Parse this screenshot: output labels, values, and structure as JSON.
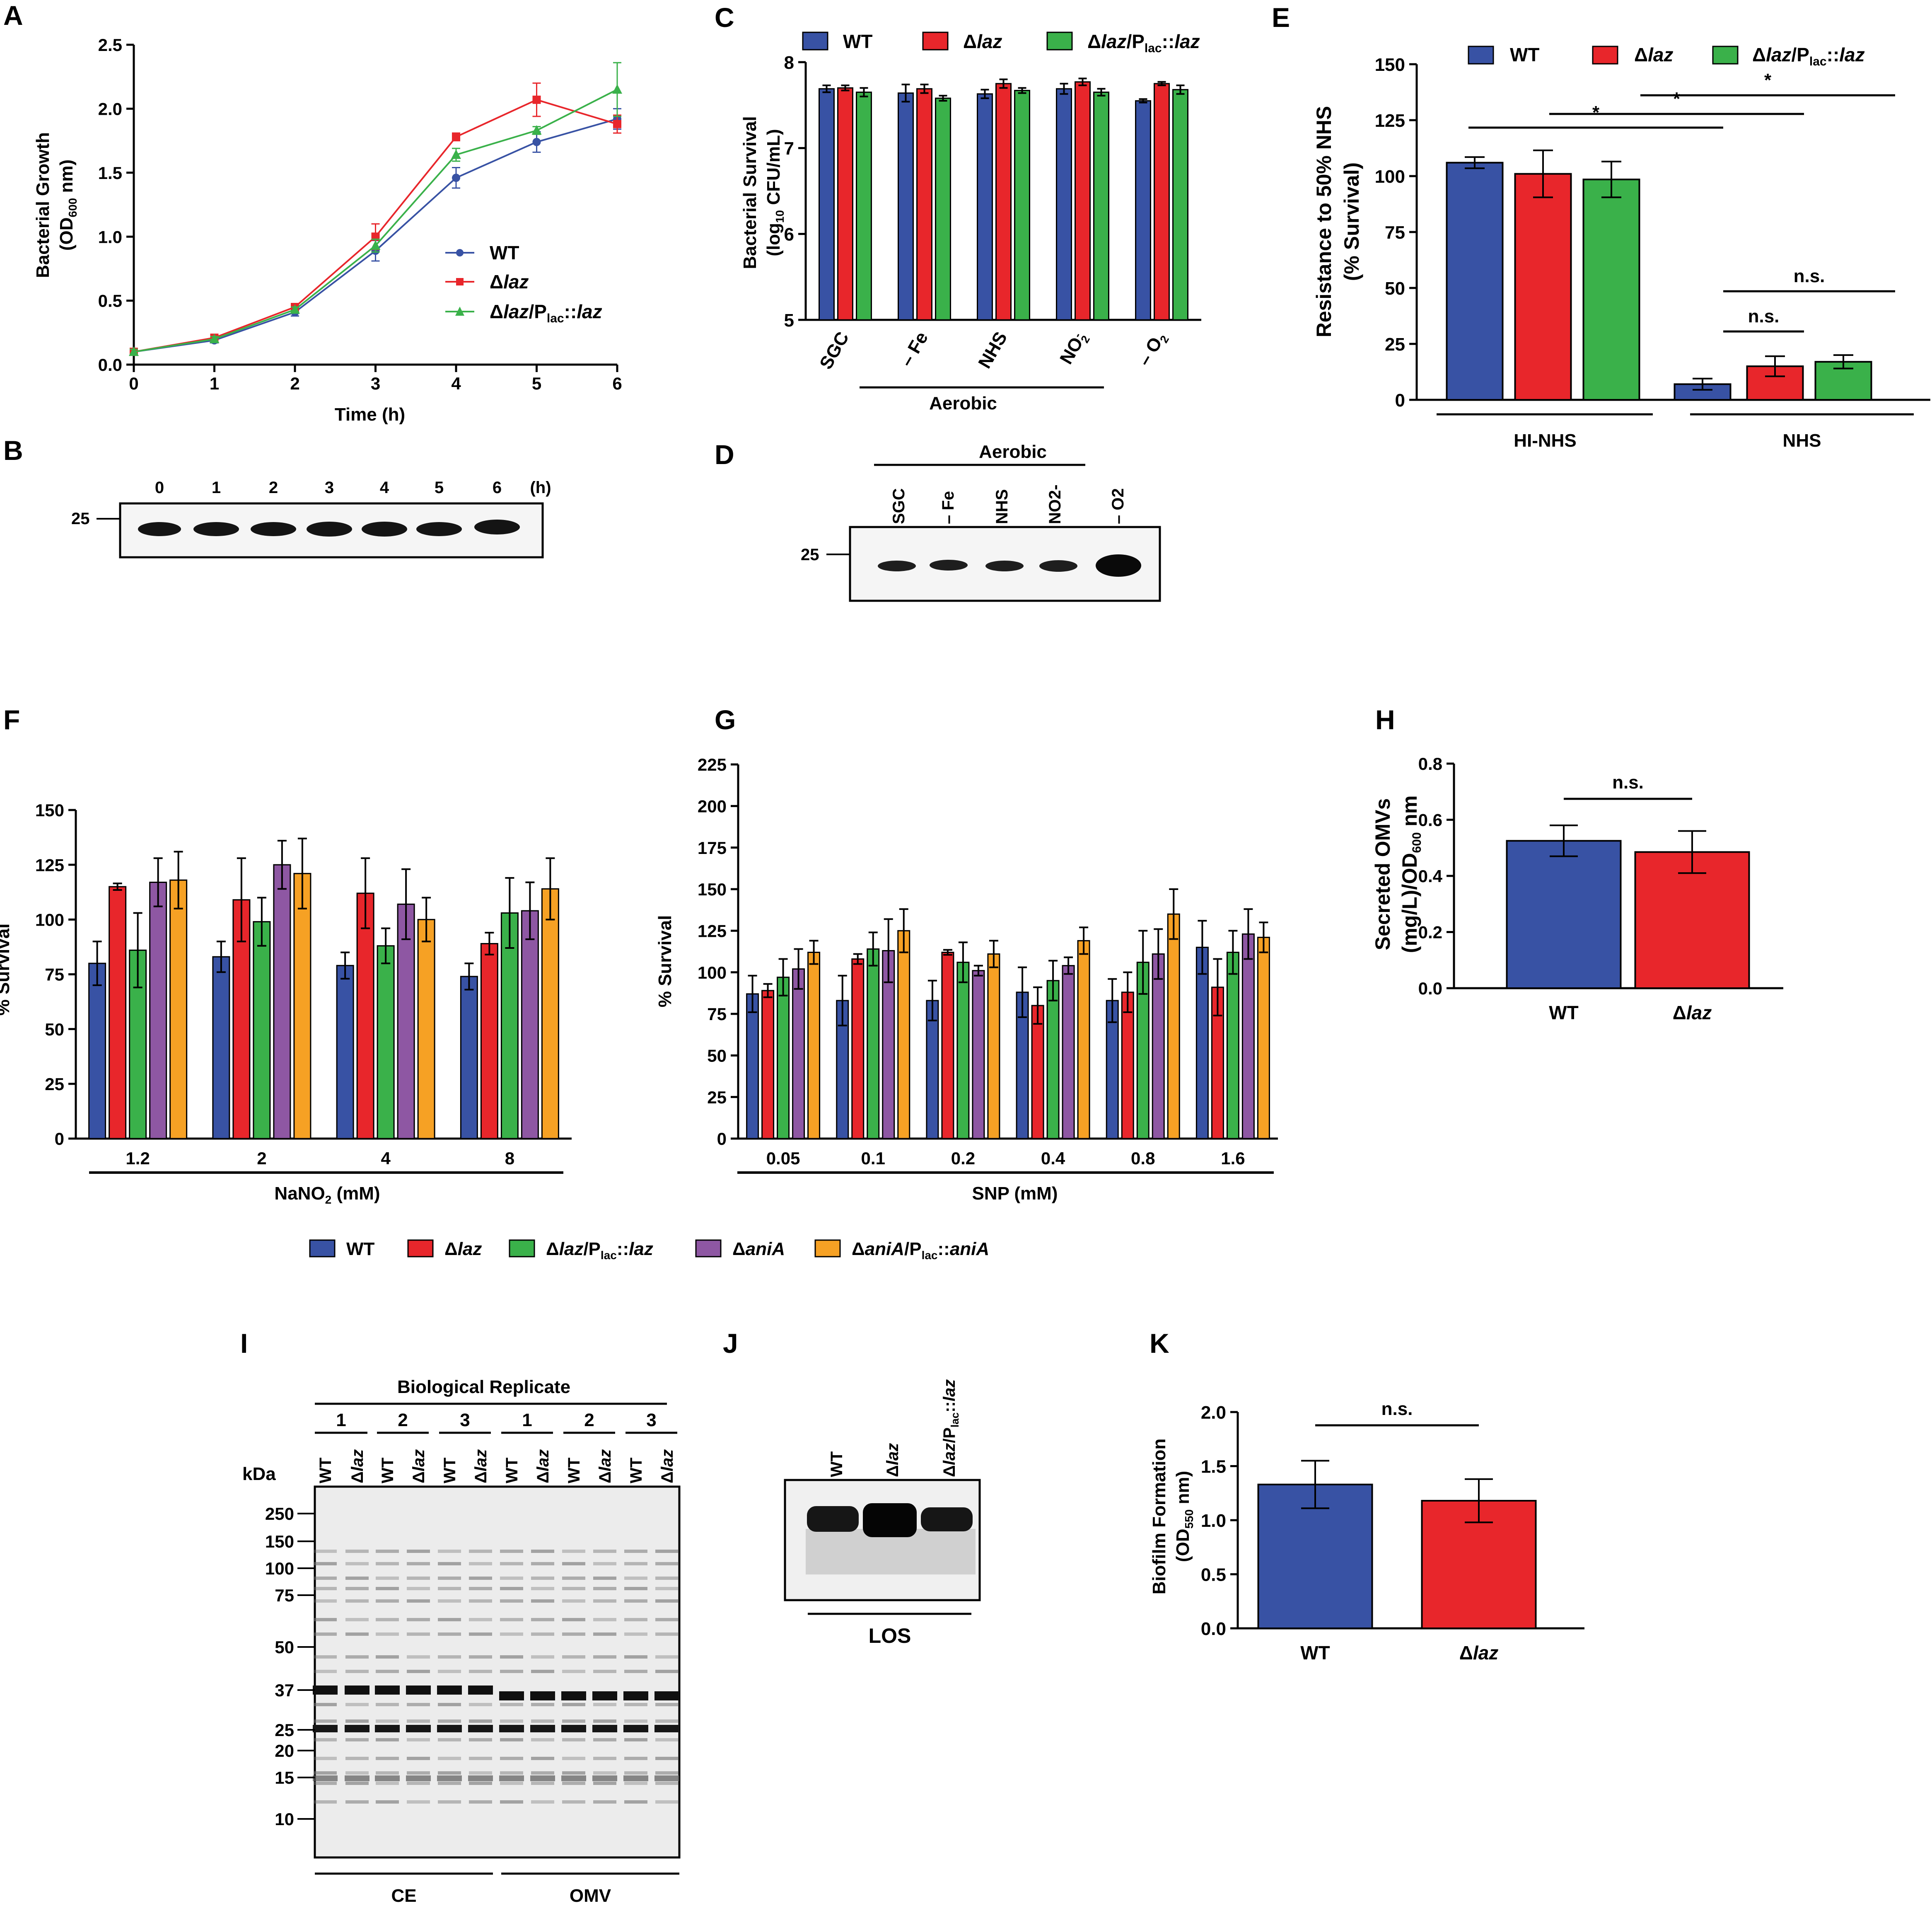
{
  "colors": {
    "wt": "#3852A4",
    "laz": "#E8262B",
    "comp": "#3AB14A",
    "ania": "#8E57A3",
    "ania_comp": "#F6A124",
    "black": "#000000",
    "gel_bg": "#ececec",
    "band": "#141414"
  },
  "panel_labels": [
    "A",
    "B",
    "C",
    "D",
    "E",
    "F",
    "G",
    "H",
    "I",
    "J",
    "K"
  ],
  "legend_common": {
    "wt": "WT",
    "delta": "Δ",
    "laz": "laz",
    "slash_p": "/P",
    "lac": "lac",
    "dcolon": "::",
    "ania": "aniA"
  },
  "chart_data": [
    {
      "id": "A",
      "type": "line",
      "title": "",
      "xlabel": "Time (h)",
      "ylabel_line1": "Bacterial Growth",
      "ylabel_line2_pre": "(OD",
      "ylabel_line2_sub": "600",
      "ylabel_line2_post": " nm)",
      "x": [
        0,
        1,
        2,
        3,
        4,
        5,
        6
      ],
      "xlim": [
        0,
        6
      ],
      "ylim": [
        0,
        2.5
      ],
      "yticks": [
        "0.0",
        "0.5",
        "1.0",
        "1.5",
        "2.0",
        "2.5"
      ],
      "xticks": [
        "0",
        "1",
        "2",
        "3",
        "4",
        "5",
        "6"
      ],
      "series": [
        {
          "name": "WT",
          "values": [
            0.1,
            0.19,
            0.41,
            0.89,
            1.46,
            1.74,
            1.92
          ],
          "errors": [
            0.02,
            0.02,
            0.03,
            0.08,
            0.08,
            0.08,
            0.08
          ]
        },
        {
          "name": "Δlaz",
          "values": [
            0.1,
            0.21,
            0.45,
            1.0,
            1.78,
            2.07,
            1.88
          ],
          "errors": [
            0.02,
            0.02,
            0.02,
            0.1,
            0.03,
            0.13,
            0.07
          ]
        },
        {
          "name": "Δlaz/Plac::laz",
          "values": [
            0.1,
            0.2,
            0.43,
            0.93,
            1.64,
            1.83,
            2.15
          ],
          "errors": [
            0.02,
            0.02,
            0.02,
            0.05,
            0.05,
            0.03,
            0.21
          ]
        }
      ]
    },
    {
      "id": "C",
      "type": "bar",
      "ylabel_line1": "Bacterial Survival",
      "ylabel_line2_pre": "(log",
      "ylabel_line2_sub": "10",
      "ylabel_line2_post": " CFU/mL)",
      "ylim": [
        5,
        8
      ],
      "yticks": [
        "5",
        "6",
        "7",
        "8"
      ],
      "categories": [
        "SGC",
        "– Fe",
        "NHS",
        "NO2-",
        "– O2"
      ],
      "group_label": "Aerobic",
      "series": [
        {
          "name": "WT",
          "values": [
            7.69,
            7.64,
            7.63,
            7.69,
            7.55
          ],
          "errors": [
            0.04,
            0.1,
            0.05,
            0.06,
            0.02
          ]
        },
        {
          "name": "Δlaz",
          "values": [
            7.7,
            7.69,
            7.75,
            7.77,
            7.75
          ],
          "errors": [
            0.03,
            0.05,
            0.05,
            0.04,
            0.02
          ]
        },
        {
          "name": "Δlaz/Plac::laz",
          "values": [
            7.65,
            7.58,
            7.67,
            7.65,
            7.68
          ],
          "errors": [
            0.05,
            0.03,
            0.03,
            0.04,
            0.05
          ]
        }
      ]
    },
    {
      "id": "E",
      "type": "bar",
      "ylabel_line1": "Resistance to 50% NHS",
      "ylabel_line2": "(% Survival)",
      "ylim": [
        0,
        150
      ],
      "yticks": [
        "0",
        "25",
        "50",
        "75",
        "100",
        "125",
        "150"
      ],
      "groups": [
        "HI-NHS",
        "NHS"
      ],
      "series": [
        {
          "name": "WT",
          "values": [
            106,
            7
          ],
          "errors": [
            2.5,
            2.5
          ]
        },
        {
          "name": "Δlaz",
          "values": [
            101,
            15
          ],
          "errors": [
            10.5,
            4.5
          ]
        },
        {
          "name": "Δlaz/Plac::laz",
          "values": [
            98.5,
            17
          ],
          "errors": [
            8,
            3
          ]
        }
      ],
      "annotations": [
        "*",
        "*",
        "*",
        "n.s.",
        "n.s."
      ]
    },
    {
      "id": "F",
      "type": "bar",
      "ylabel": "% Survival",
      "ylim": [
        0,
        150
      ],
      "yticks": [
        "0",
        "25",
        "50",
        "75",
        "100",
        "125",
        "150"
      ],
      "categories": [
        "1.2",
        "2",
        "4",
        "8"
      ],
      "xlabel_pre": "NaNO",
      "xlabel_sub": "2",
      "xlabel_post": " (mM)",
      "series": [
        {
          "name": "WT",
          "values": [
            80,
            83,
            79,
            74
          ],
          "errors": [
            10,
            7,
            6,
            6
          ]
        },
        {
          "name": "Δlaz",
          "values": [
            115,
            109,
            112,
            89
          ],
          "errors": [
            1.5,
            19,
            16,
            5
          ]
        },
        {
          "name": "Δlaz/Plac::laz",
          "values": [
            86,
            99,
            88,
            103
          ],
          "errors": [
            17,
            11,
            8,
            16
          ]
        },
        {
          "name": "ΔaniA",
          "values": [
            117,
            125,
            107,
            104
          ],
          "errors": [
            11,
            11,
            16,
            13
          ]
        },
        {
          "name": "ΔaniA/Plac::aniA",
          "values": [
            118,
            121,
            100,
            114
          ],
          "errors": [
            13,
            16,
            10,
            14
          ]
        }
      ]
    },
    {
      "id": "G",
      "type": "bar",
      "ylabel": "% Survival",
      "ylim": [
        0,
        225
      ],
      "yticks": [
        "0",
        "25",
        "50",
        "75",
        "100",
        "125",
        "150",
        "175",
        "200",
        "225"
      ],
      "categories": [
        "0.05",
        "0.1",
        "0.2",
        "0.4",
        "0.8",
        "1.6"
      ],
      "xlabel": "SNP (mM)",
      "series": [
        {
          "name": "WT",
          "values": [
            87,
            83,
            83,
            88,
            83,
            115
          ],
          "errors": [
            11,
            15,
            12,
            15,
            13,
            16
          ]
        },
        {
          "name": "Δlaz",
          "values": [
            89,
            108,
            112,
            80,
            88,
            91
          ],
          "errors": [
            4,
            3,
            1.5,
            11,
            12,
            17
          ]
        },
        {
          "name": "Δlaz/Plac::laz",
          "values": [
            97,
            114,
            106,
            95,
            106,
            112
          ],
          "errors": [
            11,
            10,
            12,
            12,
            19,
            13
          ]
        },
        {
          "name": "ΔaniA",
          "values": [
            102,
            113,
            101,
            104,
            111,
            123
          ],
          "errors": [
            12,
            19,
            3,
            5,
            15,
            15
          ]
        },
        {
          "name": "ΔaniA/Plac::aniA",
          "values": [
            112,
            125,
            111,
            119,
            135,
            121
          ],
          "errors": [
            7,
            13,
            8,
            8,
            15,
            9
          ]
        }
      ]
    },
    {
      "id": "H",
      "type": "bar",
      "ylabel_line1": "Secreted OMVs",
      "ylabel_line2_pre": "(mg/L)/OD",
      "ylabel_line2_sub": "600",
      "ylabel_line2_post": " nm",
      "ylim": [
        0,
        0.8
      ],
      "yticks": [
        "0.0",
        "0.2",
        "0.4",
        "0.6",
        "0.8"
      ],
      "categories": [
        "WT",
        "Δlaz"
      ],
      "values": [
        0.525,
        0.485
      ],
      "errors": [
        0.055,
        0.075
      ],
      "annotation": "n.s."
    },
    {
      "id": "K",
      "type": "bar",
      "ylabel_line1": "Biofilm Formation",
      "ylabel_line2_pre": "(OD",
      "ylabel_line2_sub": "550",
      "ylabel_line2_post": " nm)",
      "ylim": [
        0,
        2.0
      ],
      "yticks": [
        "0.0",
        "0.5",
        "1.0",
        "1.5",
        "2.0"
      ],
      "categories": [
        "WT",
        "Δlaz"
      ],
      "values": [
        1.33,
        1.18
      ],
      "errors": [
        0.22,
        0.2
      ],
      "annotation": "n.s."
    }
  ],
  "blot_B": {
    "lanes": [
      "0",
      "1",
      "2",
      "3",
      "4",
      "5",
      "6"
    ],
    "unit": "(h)",
    "marker": "25"
  },
  "blot_D": {
    "header": "Aerobic",
    "lanes": [
      "SGC",
      "– Fe",
      "NHS",
      "NO2-",
      "– O2"
    ],
    "marker": "25"
  },
  "gel_I": {
    "header": "Biological Replicate",
    "replicates": [
      "1",
      "2",
      "3",
      "1",
      "2",
      "3"
    ],
    "lane_labels": [
      "WT",
      "Δlaz",
      "WT",
      "Δlaz",
      "WT",
      "Δlaz",
      "WT",
      "Δlaz",
      "WT",
      "Δlaz",
      "WT",
      "Δlaz"
    ],
    "unit": "kDa",
    "markers": [
      "250",
      "150",
      "100",
      "75",
      "50",
      "37",
      "25",
      "20",
      "15",
      "10"
    ],
    "groups": [
      "CE",
      "OMV"
    ]
  },
  "blot_J": {
    "lanes": [
      "WT",
      "Δlaz",
      "Δlaz/Plac::laz"
    ],
    "label": "LOS"
  },
  "legend_FG": [
    "WT",
    "Δlaz",
    "Δlaz/Plac::laz",
    "ΔaniA",
    "ΔaniA/Plac::aniA"
  ]
}
